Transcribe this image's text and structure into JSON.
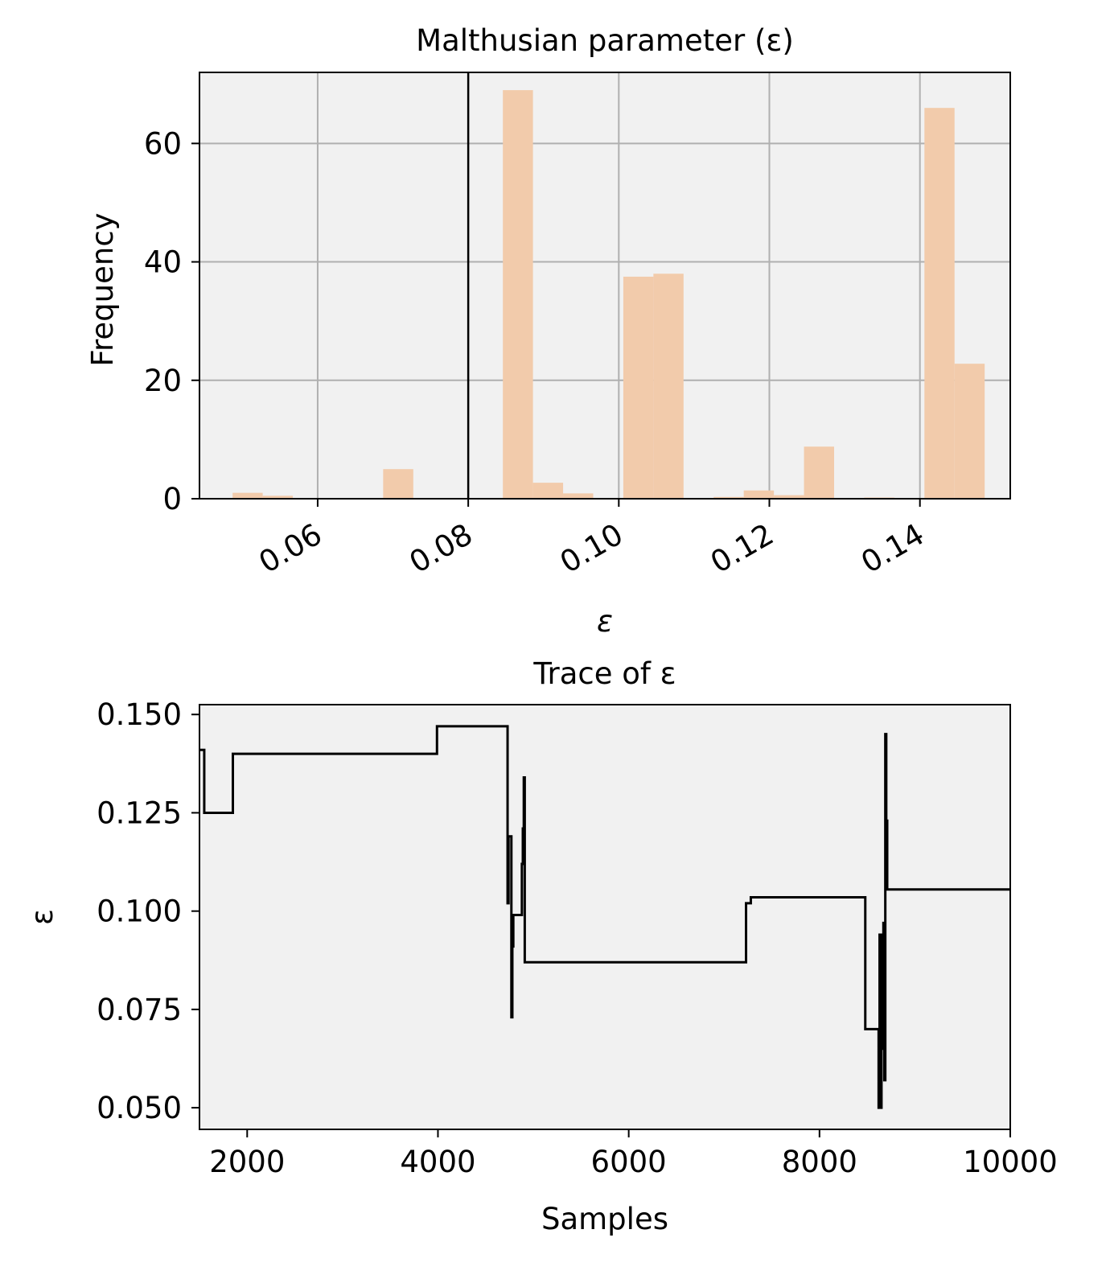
{
  "chart_data": [
    {
      "type": "bar",
      "title": "Malthusian parameter (ε)",
      "xlabel": "ε",
      "ylabel": "Frequency",
      "xlim": [
        0.0443,
        0.152
      ],
      "ylim": [
        0,
        72
      ],
      "xticks": [
        0.06,
        0.08,
        0.1,
        0.12,
        0.14
      ],
      "xtick_labels": [
        "0.06",
        "0.08",
        "0.10",
        "0.12",
        "0.14"
      ],
      "yticks": [
        0,
        20,
        40,
        60
      ],
      "ytick_labels": [
        "0",
        "20",
        "40",
        "60"
      ],
      "grid": true,
      "vline_x": 0.08,
      "bar_color": "#f2cbab",
      "bins": [
        {
          "x0": 0.0487,
          "x1": 0.0527,
          "value": 1
        },
        {
          "x0": 0.0527,
          "x1": 0.0567,
          "value": 0.5
        },
        {
          "x0": 0.0687,
          "x1": 0.0727,
          "value": 5
        },
        {
          "x0": 0.0846,
          "x1": 0.0886,
          "value": 69
        },
        {
          "x0": 0.0886,
          "x1": 0.0926,
          "value": 2.7
        },
        {
          "x0": 0.0926,
          "x1": 0.0966,
          "value": 0.9
        },
        {
          "x0": 0.1006,
          "x1": 0.1046,
          "value": 37.5
        },
        {
          "x0": 0.1046,
          "x1": 0.1086,
          "value": 38
        },
        {
          "x0": 0.1126,
          "x1": 0.1166,
          "value": 0.3
        },
        {
          "x0": 0.1166,
          "x1": 0.1206,
          "value": 1.4
        },
        {
          "x0": 0.1206,
          "x1": 0.1246,
          "value": 0.6
        },
        {
          "x0": 0.1246,
          "x1": 0.1286,
          "value": 8.8
        },
        {
          "x0": 0.1326,
          "x1": 0.1366,
          "value": 0.2
        },
        {
          "x0": 0.1406,
          "x1": 0.1446,
          "value": 66
        },
        {
          "x0": 0.1446,
          "x1": 0.1486,
          "value": 22.8
        }
      ]
    },
    {
      "type": "line",
      "title": "Trace of ε",
      "xlabel": "Samples",
      "ylabel": "ε",
      "xlim": [
        1500,
        10000
      ],
      "ylim": [
        0.0445,
        0.1525
      ],
      "xticks": [
        2000,
        4000,
        6000,
        8000,
        10000
      ],
      "xtick_labels": [
        "2000",
        "4000",
        "6000",
        "8000",
        "10000"
      ],
      "yticks": [
        0.05,
        0.075,
        0.1,
        0.125,
        0.15
      ],
      "ytick_labels": [
        "0.050",
        "0.075",
        "0.100",
        "0.125",
        "0.150"
      ],
      "grid": false,
      "line_color": "#000000",
      "x": [
        1500,
        1540,
        1540,
        1550,
        1550,
        1850,
        1850,
        3990,
        3990,
        4730,
        4730,
        4740,
        4740,
        4770,
        4770,
        4780,
        4780,
        4790,
        4790,
        4880,
        4880,
        4890,
        4890,
        4900,
        4900,
        4910,
        4910,
        4920,
        4920,
        4930,
        4930,
        7230,
        7230,
        7280,
        7280,
        8480,
        8480,
        8620,
        8620,
        8630,
        8630,
        8640,
        8640,
        8650,
        8650,
        8660,
        8660,
        8670,
        8670,
        8680,
        8680,
        8690,
        8690,
        8700,
        8700,
        8710,
        8710,
        8720,
        8720,
        8730,
        8730,
        10000
      ],
      "y": [
        0.141,
        0.141,
        0.141,
        0.141,
        0.125,
        0.125,
        0.14,
        0.14,
        0.147,
        0.147,
        0.102,
        0.102,
        0.119,
        0.119,
        0.073,
        0.073,
        0.091,
        0.091,
        0.099,
        0.099,
        0.112,
        0.112,
        0.121,
        0.121,
        0.134,
        0.134,
        0.087,
        0.087,
        0.087,
        0.087,
        0.087,
        0.087,
        0.102,
        0.102,
        0.1035,
        0.1035,
        0.07,
        0.07,
        0.05,
        0.05,
        0.094,
        0.094,
        0.05,
        0.05,
        0.094,
        0.094,
        0.065,
        0.065,
        0.097,
        0.097,
        0.057,
        0.057,
        0.145,
        0.145,
        0.123,
        0.123,
        0.1055,
        0.1055,
        0.1055,
        0.1055,
        0.1055,
        0.1055
      ]
    }
  ]
}
